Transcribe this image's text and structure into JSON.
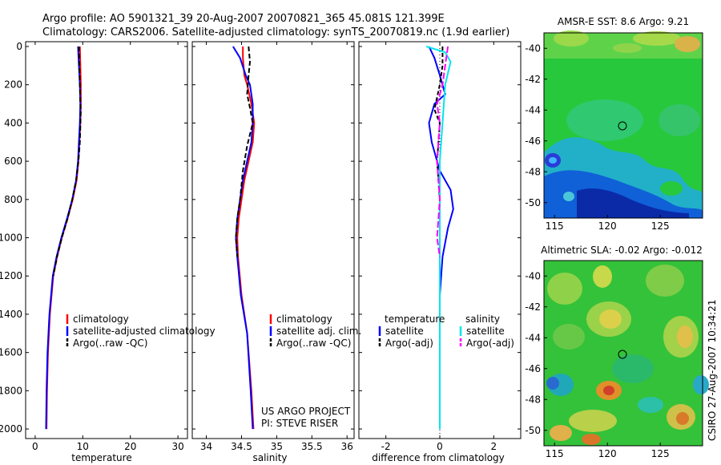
{
  "header": {
    "line1": "Argo profile: AO 5901321_39 20-Aug-2007 20070821_365 45.081S 121.399E",
    "line2": "Climatology: CARS2006. Satellite-adjusted climatology: synTS_20070819.nc (1.9d earlier)"
  },
  "colors": {
    "climatology": "#ff0000",
    "satellite": "#0000ff",
    "argo": "#000000",
    "sal_satellite": "#00e5ee",
    "argo_adj": "#ff00ff"
  },
  "side_text": "CSIRO 27-Aug-2007 10:34:21",
  "project": {
    "line1": "US ARGO PROJECT",
    "line2": "PI: STEVE RISER"
  },
  "chart_data": [
    {
      "type": "line",
      "id": "temperature",
      "xlabel": "temperature",
      "ylabel": "",
      "xlim": [
        -2,
        32
      ],
      "ylim": [
        2050,
        0
      ],
      "xticks": [
        0,
        10,
        20,
        30
      ],
      "yticks": [
        0,
        200,
        400,
        600,
        800,
        1000,
        1200,
        1400,
        1600,
        1800,
        2000
      ],
      "legend": [
        "climatology",
        "satellite-adjusted climatology",
        "Argo(..raw -QC)"
      ],
      "series": [
        {
          "name": "climatology",
          "color": "#ff0000",
          "x": [
            9.4,
            9.5,
            9.6,
            9.6,
            9.5,
            9.3,
            9.1,
            8.7,
            7.9,
            6.8,
            5.6,
            4.6,
            3.8,
            3.1,
            2.7,
            2.5,
            2.4
          ],
          "y": [
            0,
            100,
            200,
            300,
            400,
            500,
            600,
            700,
            800,
            900,
            1000,
            1100,
            1200,
            1400,
            1600,
            1800,
            2000
          ]
        },
        {
          "name": "satellite-adjusted climatology",
          "color": "#0000ff",
          "x": [
            9.0,
            9.2,
            9.4,
            9.5,
            9.4,
            9.2,
            9.0,
            8.6,
            7.8,
            6.7,
            5.5,
            4.5,
            3.7,
            3.0,
            2.6,
            2.4,
            2.3
          ],
          "y": [
            0,
            100,
            200,
            300,
            400,
            500,
            600,
            700,
            800,
            900,
            1000,
            1100,
            1200,
            1400,
            1600,
            1800,
            2000
          ]
        },
        {
          "name": "Argo(..raw -QC)",
          "color": "#000000",
          "dash": "6,3",
          "x": [
            9.2,
            9.3,
            9.4,
            9.5,
            9.6,
            9.4,
            9.1,
            8.6,
            7.8,
            6.8,
            5.6,
            4.6,
            3.8
          ],
          "y": [
            0,
            100,
            200,
            300,
            330,
            500,
            600,
            700,
            800,
            900,
            1000,
            1100,
            1200
          ]
        }
      ]
    },
    {
      "type": "line",
      "id": "salinity",
      "xlabel": "salinity",
      "xlim": [
        33.8,
        36.1
      ],
      "ylim": [
        2050,
        0
      ],
      "xticks": [
        34,
        34.5,
        35,
        35.5,
        36
      ],
      "legend": [
        "climatology",
        "satellite adj. clim.",
        "Argo(..raw -QC)"
      ],
      "series": [
        {
          "name": "climatology",
          "color": "#ff0000",
          "x": [
            34.52,
            34.52,
            34.54,
            34.58,
            34.64,
            34.68,
            34.66,
            34.6,
            34.54,
            34.5,
            34.46,
            34.44,
            34.45,
            34.5,
            34.58,
            34.64,
            34.67
          ],
          "y": [
            0,
            60,
            150,
            200,
            300,
            400,
            500,
            600,
            700,
            800,
            900,
            1000,
            1100,
            1300,
            1500,
            1800,
            2000
          ]
        },
        {
          "name": "satellite adj. clim.",
          "color": "#0000ff",
          "x": [
            34.38,
            34.48,
            34.56,
            34.62,
            34.66,
            34.66,
            34.64,
            34.58,
            34.52,
            34.48,
            34.44,
            34.42,
            34.44,
            34.49,
            34.58,
            34.63,
            34.66
          ],
          "y": [
            0,
            60,
            150,
            200,
            300,
            400,
            500,
            600,
            700,
            800,
            900,
            1000,
            1100,
            1300,
            1500,
            1800,
            2000
          ]
        },
        {
          "name": "Argo(..raw -QC)",
          "color": "#000000",
          "dash": "6,3",
          "x": [
            34.6,
            34.62,
            34.6,
            34.58,
            34.62,
            34.66,
            34.58,
            34.52,
            34.48,
            34.44,
            34.42,
            34.44
          ],
          "y": [
            0,
            80,
            150,
            250,
            320,
            400,
            520,
            650,
            800,
            900,
            1000,
            1100
          ]
        }
      ]
    },
    {
      "type": "line",
      "id": "difference",
      "xlabel": "difference from climatology",
      "xlim": [
        -3,
        3
      ],
      "ylim": [
        2050,
        0
      ],
      "xticks": [
        -2,
        0,
        2
      ],
      "legend_columns": [
        {
          "title": "temperature",
          "items": [
            "satellite",
            "Argo(-adj)"
          ]
        },
        {
          "title": "salinity",
          "items": [
            "satellite",
            "Argo(-adj)"
          ]
        }
      ],
      "series": [
        {
          "name": "temperature satellite",
          "color": "#0000ff",
          "x": [
            -0.4,
            -0.2,
            0.0,
            0.2,
            -0.2,
            -0.4,
            -0.3,
            0.0,
            0.4,
            0.5,
            0.3,
            0.1,
            0.0,
            0.0,
            0.0,
            0.0,
            0.0
          ],
          "y": [
            0,
            60,
            150,
            250,
            300,
            400,
            500,
            650,
            750,
            850,
            950,
            1100,
            1300,
            1500,
            1700,
            1900,
            2000
          ]
        },
        {
          "name": "temperature Argo(-adj)",
          "color": "#000000",
          "dash": "5,3",
          "x": [
            0.1,
            0.1,
            0.0,
            -0.2,
            0.0,
            -0.1,
            0.0,
            0.0,
            0.0,
            0.0,
            0.0
          ],
          "y": [
            0,
            100,
            200,
            330,
            400,
            600,
            800,
            900,
            1000,
            1100,
            1200
          ]
        },
        {
          "name": "salinity satellite",
          "color": "#00e5ee",
          "x": [
            -0.5,
            0.2,
            0.4,
            0.2,
            0.1,
            0.0,
            0.0,
            0.0,
            0.0,
            0.0,
            0.0
          ],
          "y": [
            0,
            30,
            80,
            200,
            400,
            600,
            800,
            1000,
            1400,
            1800,
            2000
          ]
        },
        {
          "name": "salinity Argo(-adj)",
          "color": "#ff00ff",
          "dash": "8,3",
          "x": [
            0.3,
            0.2,
            0.1,
            -0.1,
            0.0,
            -0.1,
            0.0,
            -0.1,
            0.0
          ],
          "y": [
            0,
            100,
            200,
            300,
            400,
            600,
            800,
            1000,
            1100
          ]
        }
      ]
    },
    {
      "type": "heatmap",
      "id": "sst",
      "title": "AMSR-E SST: 8.6 Argo: 9.21",
      "xticks": [
        115,
        120,
        125
      ],
      "yticks": [
        -40,
        -42,
        -44,
        -46,
        -48,
        -50
      ],
      "xlim": [
        114,
        129
      ],
      "ylim": [
        -51,
        -39
      ],
      "marker": {
        "x": 121.4,
        "y": -45.1
      }
    },
    {
      "type": "heatmap",
      "id": "sla",
      "title": "Altimetric SLA: -0.02 Argo: -0.012",
      "xticks": [
        115,
        120,
        125
      ],
      "yticks": [
        -40,
        -42,
        -44,
        -46,
        -48,
        -50
      ],
      "xlim": [
        114,
        129
      ],
      "ylim": [
        -51,
        -39
      ],
      "marker": {
        "x": 121.4,
        "y": -45.1
      }
    }
  ]
}
